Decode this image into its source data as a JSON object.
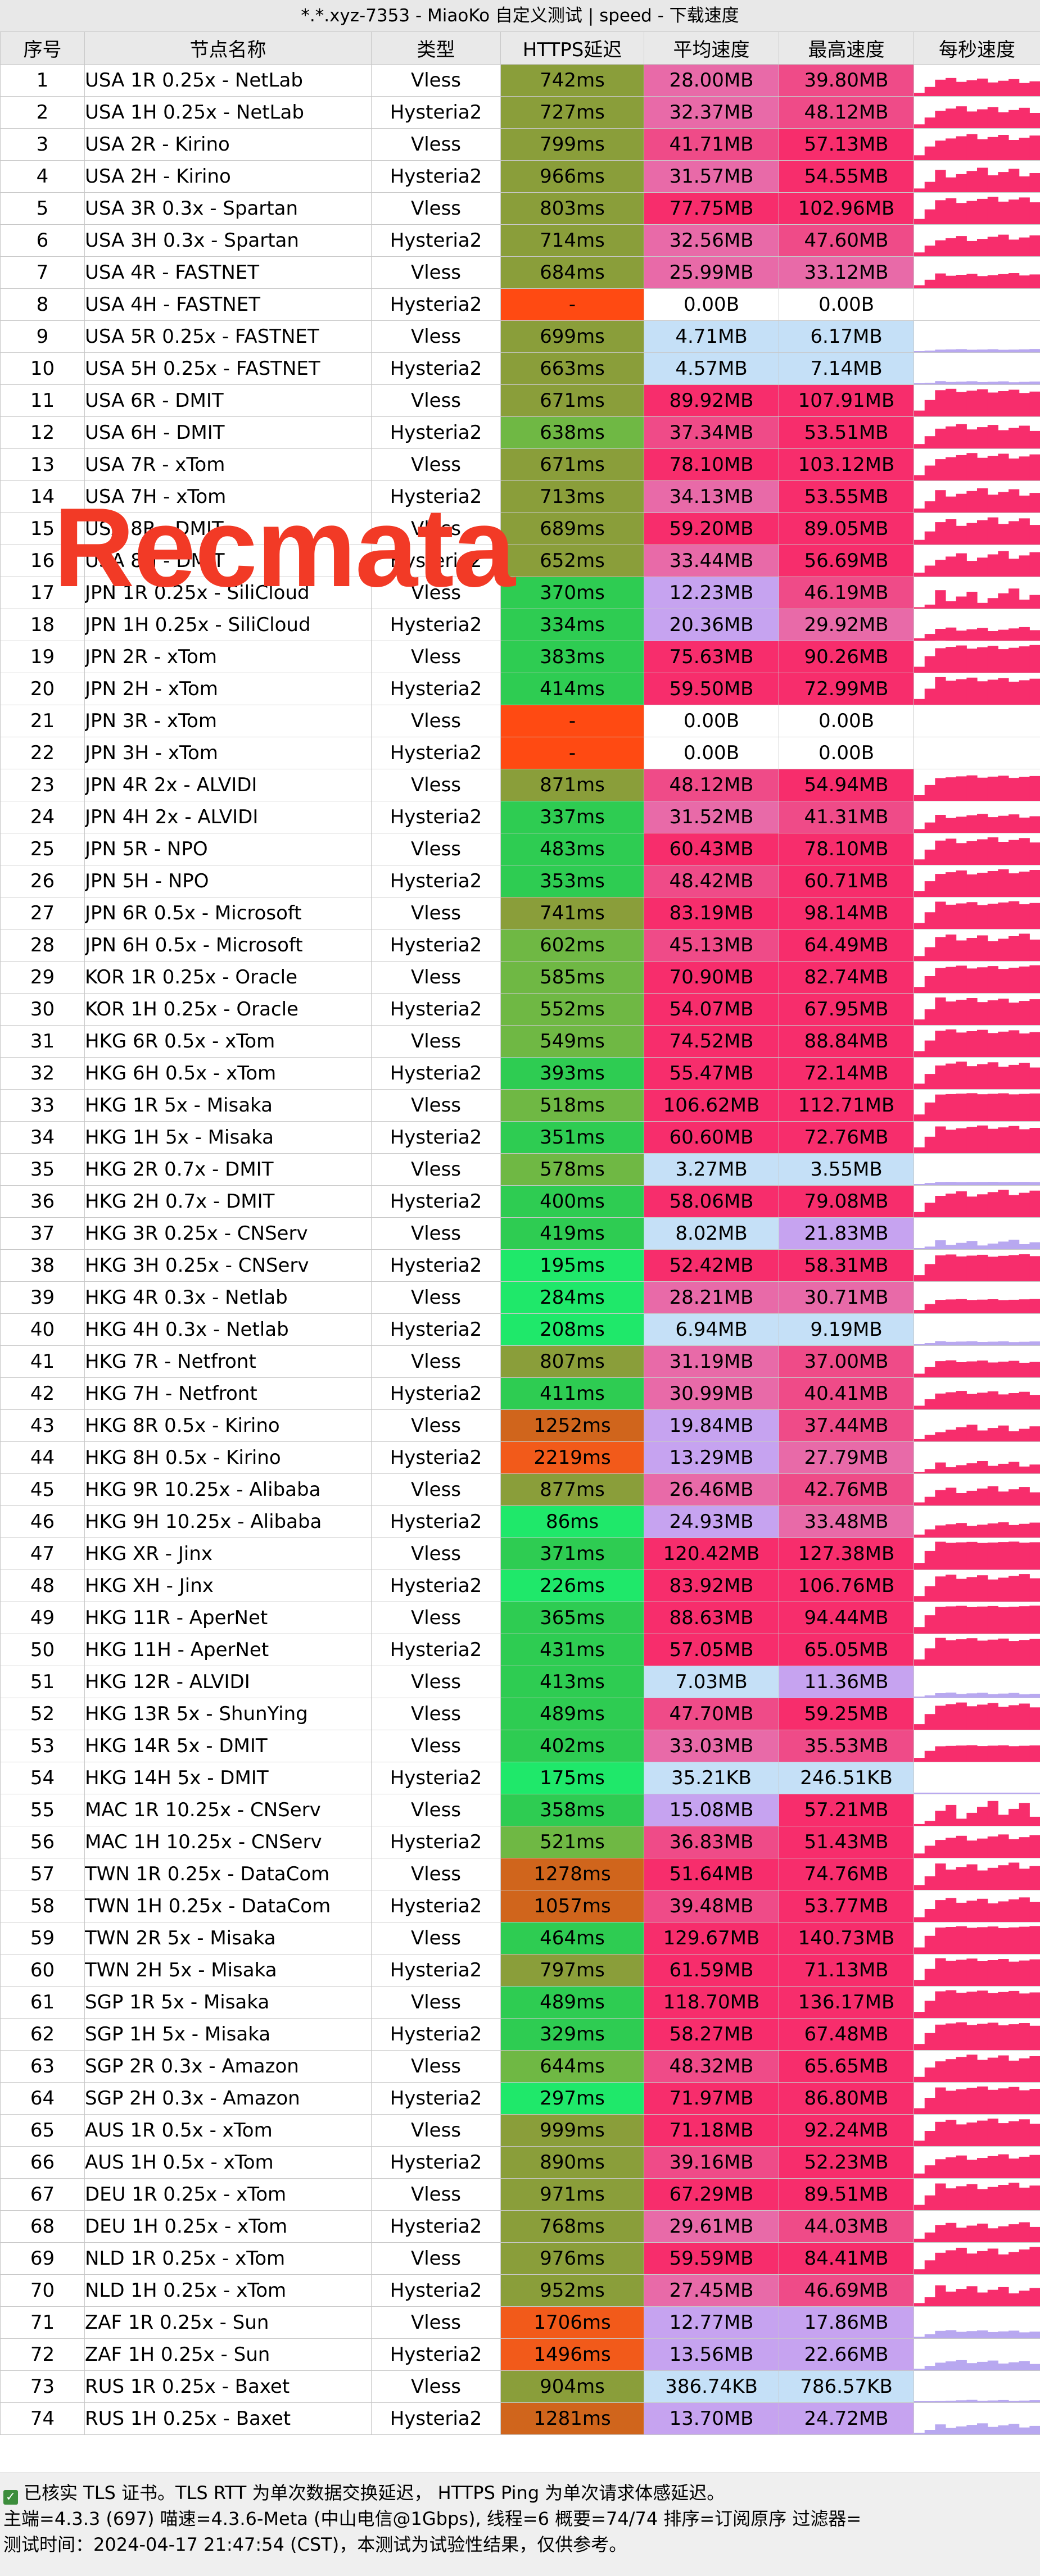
{
  "title": "*.*.xyz-7353 - MiaoKo 自定义测试 | speed - 下载速度",
  "columns": [
    "序号",
    "节点名称",
    "类型",
    "HTTPS延迟",
    "平均速度",
    "最高速度",
    "每秒速度"
  ],
  "rows": [
    [
      "1",
      "USA 1R 0.25x - NetLab",
      "Vless",
      "742ms",
      "28.00MB",
      "39.80MB"
    ],
    [
      "2",
      "USA 1H 0.25x - NetLab",
      "Hysteria2",
      "727ms",
      "32.37MB",
      "48.12MB"
    ],
    [
      "3",
      "USA 2R - Kirino",
      "Vless",
      "799ms",
      "41.71MB",
      "57.13MB"
    ],
    [
      "4",
      "USA 2H - Kirino",
      "Hysteria2",
      "966ms",
      "31.57MB",
      "54.55MB"
    ],
    [
      "5",
      "USA 3R 0.3x - Spartan",
      "Vless",
      "803ms",
      "77.75MB",
      "102.96MB"
    ],
    [
      "6",
      "USA 3H 0.3x - Spartan",
      "Hysteria2",
      "714ms",
      "32.56MB",
      "47.60MB"
    ],
    [
      "7",
      "USA 4R - FASTNET",
      "Vless",
      "684ms",
      "25.99MB",
      "33.12MB"
    ],
    [
      "8",
      "USA 4H - FASTNET",
      "Hysteria2",
      "-",
      "0.00B",
      "0.00B"
    ],
    [
      "9",
      "USA 5R 0.25x - FASTNET",
      "Vless",
      "699ms",
      "4.71MB",
      "6.17MB"
    ],
    [
      "10",
      "USA 5H 0.25x - FASTNET",
      "Hysteria2",
      "663ms",
      "4.57MB",
      "7.14MB"
    ],
    [
      "11",
      "USA 6R - DMIT",
      "Vless",
      "671ms",
      "89.92MB",
      "107.91MB"
    ],
    [
      "12",
      "USA 6H - DMIT",
      "Hysteria2",
      "638ms",
      "37.34MB",
      "53.51MB"
    ],
    [
      "13",
      "USA 7R - xTom",
      "Vless",
      "671ms",
      "78.10MB",
      "103.12MB"
    ],
    [
      "14",
      "USA 7H - xTom",
      "Hysteria2",
      "713ms",
      "34.13MB",
      "53.55MB"
    ],
    [
      "15",
      "USA 8R - DMIT",
      "Vless",
      "689ms",
      "59.20MB",
      "89.05MB"
    ],
    [
      "16",
      "USA 8H - DMIT",
      "Hysteria2",
      "652ms",
      "33.44MB",
      "56.69MB"
    ],
    [
      "17",
      "JPN 1R 0.25x - SiliCloud",
      "Vless",
      "370ms",
      "12.23MB",
      "46.19MB"
    ],
    [
      "18",
      "JPN 1H 0.25x - SiliCloud",
      "Hysteria2",
      "334ms",
      "20.36MB",
      "29.92MB"
    ],
    [
      "19",
      "JPN 2R - xTom",
      "Vless",
      "383ms",
      "75.63MB",
      "90.26MB"
    ],
    [
      "20",
      "JPN 2H - xTom",
      "Hysteria2",
      "414ms",
      "59.50MB",
      "72.99MB"
    ],
    [
      "21",
      "JPN 3R - xTom",
      "Vless",
      "-",
      "0.00B",
      "0.00B"
    ],
    [
      "22",
      "JPN 3H - xTom",
      "Hysteria2",
      "-",
      "0.00B",
      "0.00B"
    ],
    [
      "23",
      "JPN 4R 2x - ALVIDI",
      "Vless",
      "871ms",
      "48.12MB",
      "54.94MB"
    ],
    [
      "24",
      "JPN 4H 2x - ALVIDI",
      "Hysteria2",
      "337ms",
      "31.52MB",
      "41.31MB"
    ],
    [
      "25",
      "JPN 5R - NPO",
      "Vless",
      "483ms",
      "60.43MB",
      "78.10MB"
    ],
    [
      "26",
      "JPN 5H - NPO",
      "Hysteria2",
      "353ms",
      "48.42MB",
      "60.71MB"
    ],
    [
      "27",
      "JPN 6R 0.5x - Microsoft",
      "Vless",
      "741ms",
      "83.19MB",
      "98.14MB"
    ],
    [
      "28",
      "JPN 6H 0.5x - Microsoft",
      "Hysteria2",
      "602ms",
      "45.13MB",
      "64.49MB"
    ],
    [
      "29",
      "KOR 1R 0.25x - Oracle",
      "Vless",
      "585ms",
      "70.90MB",
      "82.74MB"
    ],
    [
      "30",
      "KOR 1H 0.25x - Oracle",
      "Hysteria2",
      "552ms",
      "54.07MB",
      "67.95MB"
    ],
    [
      "31",
      "HKG 6R  0.5x - xTom",
      "Vless",
      "549ms",
      "74.52MB",
      "88.84MB"
    ],
    [
      "32",
      "HKG 6H 0.5x - xTom",
      "Hysteria2",
      "393ms",
      "55.47MB",
      "72.14MB"
    ],
    [
      "33",
      "HKG 1R 5x - Misaka",
      "Vless",
      "518ms",
      "106.62MB",
      "112.71MB"
    ],
    [
      "34",
      "HKG 1H 5x - Misaka",
      "Hysteria2",
      "351ms",
      "60.60MB",
      "72.76MB"
    ],
    [
      "35",
      "HKG 2R 0.7x - DMIT",
      "Vless",
      "578ms",
      "3.27MB",
      "3.55MB"
    ],
    [
      "36",
      "HKG 2H 0.7x - DMIT",
      "Hysteria2",
      "400ms",
      "58.06MB",
      "79.08MB"
    ],
    [
      "37",
      "HKG 3R 0.25x - CNServ",
      "Vless",
      "419ms",
      "8.02MB",
      "21.83MB"
    ],
    [
      "38",
      "HKG 3H 0.25x - CNServ",
      "Hysteria2",
      "195ms",
      "52.42MB",
      "58.31MB"
    ],
    [
      "39",
      "HKG 4R 0.3x - Netlab",
      "Vless",
      "284ms",
      "28.21MB",
      "30.71MB"
    ],
    [
      "40",
      "HKG 4H 0.3x - Netlab",
      "Hysteria2",
      "208ms",
      "6.94MB",
      "9.19MB"
    ],
    [
      "41",
      "HKG 7R - Netfront",
      "Vless",
      "807ms",
      "31.19MB",
      "37.00MB"
    ],
    [
      "42",
      "HKG 7H - Netfront",
      "Hysteria2",
      "411ms",
      "30.99MB",
      "40.41MB"
    ],
    [
      "43",
      "HKG 8R 0.5x - Kirino",
      "Vless",
      "1252ms",
      "19.84MB",
      "37.44MB"
    ],
    [
      "44",
      "HKG 8H 0.5x - Kirino",
      "Hysteria2",
      "2219ms",
      "13.29MB",
      "27.79MB"
    ],
    [
      "45",
      "HKG 9R 10.25x - Alibaba",
      "Vless",
      "877ms",
      "26.46MB",
      "42.76MB"
    ],
    [
      "46",
      "HKG 9H 10.25x - Alibaba",
      "Hysteria2",
      "86ms",
      "24.93MB",
      "33.48MB"
    ],
    [
      "47",
      "HKG XR - Jinx",
      "Vless",
      "371ms",
      "120.42MB",
      "127.38MB"
    ],
    [
      "48",
      "HKG XH - Jinx",
      "Hysteria2",
      "226ms",
      "83.92MB",
      "106.76MB"
    ],
    [
      "49",
      "HKG 11R - AperNet",
      "Vless",
      "365ms",
      "88.63MB",
      "94.44MB"
    ],
    [
      "50",
      "HKG 11H - AperNet",
      "Hysteria2",
      "431ms",
      "57.05MB",
      "65.05MB"
    ],
    [
      "51",
      "HKG 12R - ALVIDI",
      "Vless",
      "413ms",
      "7.03MB",
      "11.36MB"
    ],
    [
      "52",
      "HKG 13R 5x - ShunYing",
      "Vless",
      "489ms",
      "47.70MB",
      "59.25MB"
    ],
    [
      "53",
      "HKG 14R 5x - DMIT",
      "Vless",
      "402ms",
      "33.03MB",
      "35.53MB"
    ],
    [
      "54",
      "HKG 14H 5x - DMIT",
      "Hysteria2",
      "175ms",
      "35.21KB",
      "246.51KB"
    ],
    [
      "55",
      "MAC 1R 10.25x - CNServ",
      "Vless",
      "358ms",
      "15.08MB",
      "57.21MB"
    ],
    [
      "56",
      "MAC 1H 10.25x - CNServ",
      "Hysteria2",
      "521ms",
      "36.83MB",
      "51.43MB"
    ],
    [
      "57",
      "TWN 1R 0.25x - DataCom",
      "Vless",
      "1278ms",
      "51.64MB",
      "74.76MB"
    ],
    [
      "58",
      "TWN 1H 0.25x - DataCom",
      "Hysteria2",
      "1057ms",
      "39.48MB",
      "53.77MB"
    ],
    [
      "59",
      "TWN 2R 5x - Misaka",
      "Vless",
      "464ms",
      "129.67MB",
      "140.73MB"
    ],
    [
      "60",
      "TWN 2H 5x - Misaka",
      "Hysteria2",
      "797ms",
      "61.59MB",
      "71.13MB"
    ],
    [
      "61",
      "SGP 1R 5x - Misaka",
      "Vless",
      "489ms",
      "118.70MB",
      "136.17MB"
    ],
    [
      "62",
      "SGP 1H 5x - Misaka",
      "Hysteria2",
      "329ms",
      "58.27MB",
      "67.48MB"
    ],
    [
      "63",
      "SGP 2R 0.3x - Amazon",
      "Vless",
      "644ms",
      "48.32MB",
      "65.65MB"
    ],
    [
      "64",
      "SGP 2H 0.3x - Amazon",
      "Hysteria2",
      "297ms",
      "71.97MB",
      "86.80MB"
    ],
    [
      "65",
      "AUS 1R 0.5x - xTom",
      "Vless",
      "999ms",
      "71.18MB",
      "92.24MB"
    ],
    [
      "66",
      "AUS 1H 0.5x - xTom",
      "Hysteria2",
      "890ms",
      "39.16MB",
      "52.23MB"
    ],
    [
      "67",
      "DEU 1R 0.25x - xTom",
      "Vless",
      "971ms",
      "67.29MB",
      "89.51MB"
    ],
    [
      "68",
      "DEU 1H 0.25x - xTom",
      "Hysteria2",
      "768ms",
      "29.61MB",
      "44.03MB"
    ],
    [
      "69",
      "NLD 1R 0.25x - xTom",
      "Vless",
      "976ms",
      "59.59MB",
      "84.41MB"
    ],
    [
      "70",
      "NLD 1H 0.25x - xTom",
      "Hysteria2",
      "952ms",
      "27.45MB",
      "46.69MB"
    ],
    [
      "71",
      "ZAF 1R 0.25x - Sun",
      "Vless",
      "1706ms",
      "12.77MB",
      "17.86MB"
    ],
    [
      "72",
      "ZAF 1H 0.25x - Sun",
      "Hysteria2",
      "1496ms",
      "13.56MB",
      "22.66MB"
    ],
    [
      "73",
      "RUS 1R 0.25x - Baxet",
      "Vless",
      "904ms",
      "386.74KB",
      "786.57KB"
    ],
    [
      "74",
      "RUS 1H 0.25x - Baxet",
      "Hysteria2",
      "1281ms",
      "13.70MB",
      "24.72MB"
    ]
  ],
  "watermark": "Recmata",
  "footer": {
    "line1": "已核实 TLS 证书。TLS RTT 为单次数据交换延迟， HTTPS Ping 为单次请求体感延迟。",
    "line2": "主端=4.3.3 (697) 喵速=4.3.6-Meta (中山电信@1Gbps), 线程=6 概要=74/74 排序=订阅原序 过滤器=",
    "line3": "测试时间：2024-04-17 21:47:54 (CST)，本测试为试验性结果，仅供参考。"
  },
  "colors": {
    "latency_good": "#2ecc52",
    "latency_mid": "#8a9e3a",
    "latency_slow": "#d0651c",
    "latency_fail": "#ff4a12",
    "speed_high": "#f72d6c",
    "speed_mid": "#d57bd3",
    "speed_low": "#c5e0f7",
    "bar_high": "#f72d6c",
    "bar_low": "#b8a8f0"
  }
}
